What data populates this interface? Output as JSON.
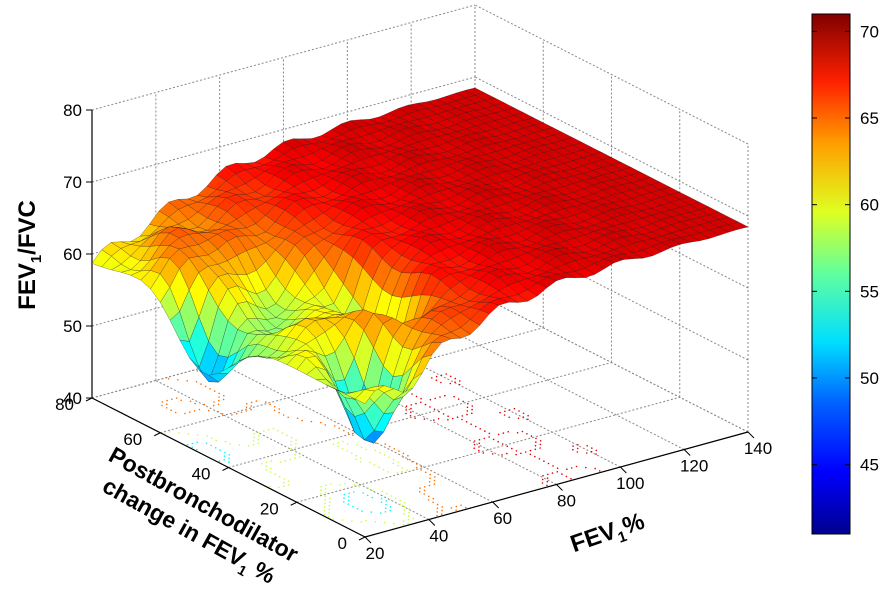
{
  "chart_data": {
    "type": "surface",
    "zlabel": {
      "main": "FEV",
      "sub": "1",
      "rest": "/FVC"
    },
    "xlabel": {
      "main": "FEV",
      "sub": "1",
      "rest": "%"
    },
    "ylabel": {
      "line1": "Postbronchodilator",
      "line2_main": "change in FEV",
      "line2_sub": "1",
      "line2_rest": " %"
    },
    "x_ticks": [
      "20",
      "40",
      "60",
      "80",
      "100",
      "120",
      "140"
    ],
    "y_ticks": [
      "0",
      "20",
      "40",
      "60",
      "80"
    ],
    "z_ticks": [
      "40",
      "50",
      "60",
      "70",
      "80"
    ],
    "xlim": [
      20,
      140
    ],
    "ylim": [
      0,
      80
    ],
    "zlim": [
      40,
      80
    ],
    "colorbar": {
      "ticks": [
        "45",
        "50",
        "55",
        "60",
        "65",
        "70"
      ],
      "range": [
        41,
        71
      ],
      "colormap": "jet"
    },
    "grid": true,
    "contour_projection": true,
    "surface_profile": {
      "description": "FEV1/FVC surface over FEV1% (x) and postbronchodilator change (y)",
      "approx_z_at_high_fev1": 68,
      "approx_z_at_low_fev1_high_change": 55,
      "min_z": 42,
      "max_z": 71
    }
  }
}
